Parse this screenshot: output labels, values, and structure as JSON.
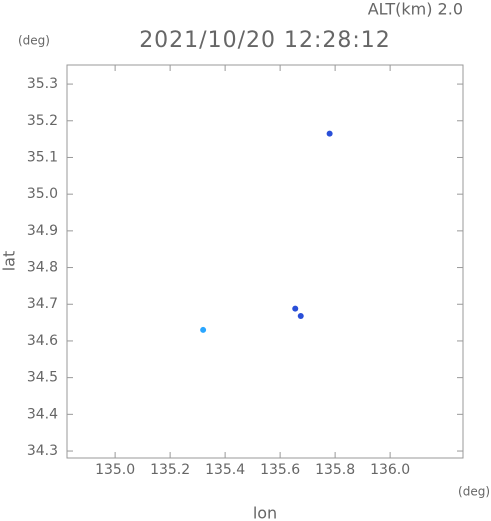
{
  "chart_data": {
    "type": "scatter",
    "title": "2021/10/20 12:28:12",
    "subtitle": "ALT(km) 2.0",
    "y_unit": "(deg)",
    "x_unit": "(deg)",
    "x_label": "lon",
    "y_label": "lat",
    "xlim": [
      134.825,
      136.265
    ],
    "ylim": [
      34.281,
      35.352
    ],
    "xticks": [
      {
        "value": 135,
        "label": "135.0"
      },
      135.2,
      135.4,
      135.6,
      135.8,
      {
        "value": 136,
        "label": "136.0"
      }
    ],
    "yticks": [
      34.3,
      34.4,
      34.5,
      34.6,
      34.7,
      34.8,
      34.9,
      {
        "value": 35,
        "label": "35.0"
      },
      35.1,
      35.2,
      35.3
    ],
    "series": [
      {
        "color": "#2a4fd8",
        "x": [
          135.78,
          135.655,
          135.675
        ],
        "values": [
          35.165,
          34.688,
          34.668
        ]
      },
      {
        "color": "#2aa6ff",
        "x": [
          135.32
        ],
        "values": [
          34.63
        ]
      }
    ]
  }
}
